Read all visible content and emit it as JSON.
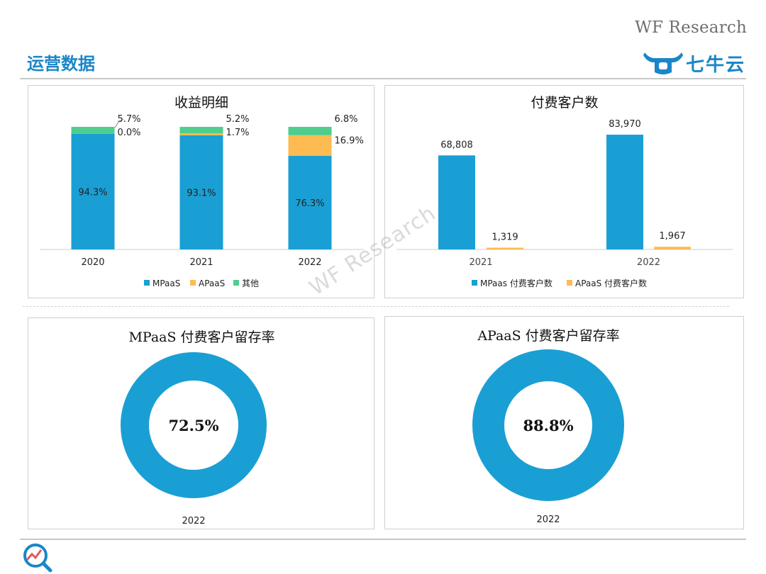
{
  "header": {
    "page_title": "运营数据",
    "brand": "WF Research",
    "logo_text": "七牛云",
    "watermark": "WF Research"
  },
  "colors": {
    "mpaas": "#1a9fd4",
    "apaas": "#fdbb52",
    "other": "#4fcd8c",
    "title": "#1a86c8"
  },
  "chart_data": [
    {
      "type": "bar",
      "stacked": true,
      "title": "收益明细",
      "categories": [
        "2020",
        "2021",
        "2022"
      ],
      "series": [
        {
          "name": "MPaaS",
          "values": [
            94.3,
            93.1,
            76.3
          ],
          "labels": [
            "94.3%",
            "93.1%",
            "76.3%"
          ]
        },
        {
          "name": "APaaS",
          "values": [
            0.0,
            1.7,
            16.9
          ],
          "labels": [
            "0.0%",
            "1.7%",
            "16.9%"
          ]
        },
        {
          "name": "其他",
          "values": [
            5.7,
            5.2,
            6.8
          ],
          "labels": [
            "5.7%",
            "5.2%",
            "6.8%"
          ]
        }
      ],
      "ylim": [
        0,
        100
      ],
      "legend": "bottom"
    },
    {
      "type": "bar",
      "title": "付费客户数",
      "categories": [
        "2021",
        "2022"
      ],
      "series": [
        {
          "name": "MPaas 付费客户数",
          "values": [
            68808,
            83970
          ],
          "labels": [
            "68,808",
            "83,970"
          ]
        },
        {
          "name": "APaaS 付费客户数",
          "values": [
            1319,
            1967
          ],
          "labels": [
            "1,319",
            "1,967"
          ]
        }
      ],
      "ylim": [
        0,
        90000
      ],
      "legend": "bottom"
    },
    {
      "type": "pie",
      "donut": true,
      "title": "MPaaS 付费客户留存率",
      "value": 72.5,
      "center_label": "72.5%",
      "category": "2022"
    },
    {
      "type": "pie",
      "donut": true,
      "title": "APaaS 付费客户留存率",
      "value": 88.8,
      "center_label": "88.8%",
      "category": "2022"
    }
  ]
}
